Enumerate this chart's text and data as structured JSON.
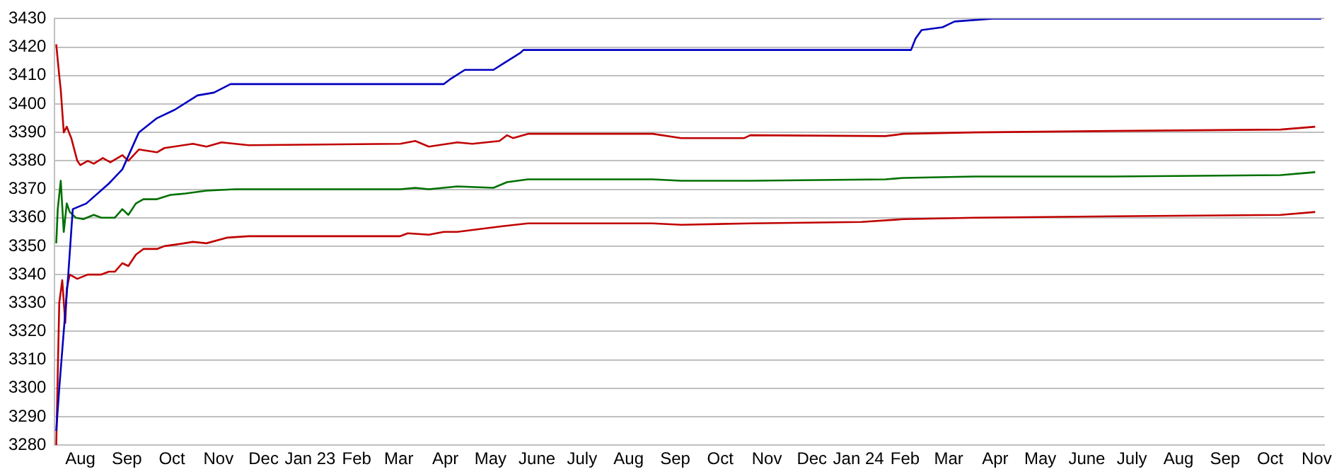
{
  "chart_data": {
    "type": "line",
    "ylim": [
      3280,
      3430
    ],
    "yticks": [
      3280,
      3290,
      3300,
      3310,
      3320,
      3330,
      3340,
      3350,
      3360,
      3370,
      3380,
      3390,
      3400,
      3410,
      3420,
      3430
    ],
    "xlim": [
      "2022-07-15",
      "2024-11-06"
    ],
    "xticks": [
      {
        "value": "2022-08-01",
        "label": "Aug"
      },
      {
        "value": "2022-09-01",
        "label": "Sep"
      },
      {
        "value": "2022-10-01",
        "label": "Oct"
      },
      {
        "value": "2022-11-01",
        "label": "Nov"
      },
      {
        "value": "2022-12-01",
        "label": "Dec"
      },
      {
        "value": "2023-01-01",
        "label": "Jan 23"
      },
      {
        "value": "2023-02-01",
        "label": "Feb"
      },
      {
        "value": "2023-03-01",
        "label": "Mar"
      },
      {
        "value": "2023-04-01",
        "label": "Apr"
      },
      {
        "value": "2023-05-01",
        "label": "May"
      },
      {
        "value": "2023-06-01",
        "label": "June"
      },
      {
        "value": "2023-07-01",
        "label": "July"
      },
      {
        "value": "2023-08-01",
        "label": "Aug"
      },
      {
        "value": "2023-09-01",
        "label": "Sep"
      },
      {
        "value": "2023-10-01",
        "label": "Oct"
      },
      {
        "value": "2023-11-01",
        "label": "Nov"
      },
      {
        "value": "2023-12-01",
        "label": "Dec"
      },
      {
        "value": "2024-01-01",
        "label": "Jan 24"
      },
      {
        "value": "2024-02-01",
        "label": "Feb"
      },
      {
        "value": "2024-03-01",
        "label": "Mar"
      },
      {
        "value": "2024-04-01",
        "label": "Apr"
      },
      {
        "value": "2024-05-01",
        "label": "May"
      },
      {
        "value": "2024-06-01",
        "label": "June"
      },
      {
        "value": "2024-07-01",
        "label": "July"
      },
      {
        "value": "2024-08-01",
        "label": "Aug"
      },
      {
        "value": "2024-09-01",
        "label": "Sep"
      },
      {
        "value": "2024-10-01",
        "label": "Oct"
      },
      {
        "value": "2024-11-01",
        "label": "Nov"
      }
    ],
    "grid": "y",
    "legend": false,
    "marker": "none",
    "line_style": "solid",
    "series": [
      {
        "color": "#0000c0",
        "x": [
          "2022-07-16",
          "2022-07-18",
          "2022-07-21",
          "2022-07-24",
          "2022-07-27",
          "2022-08-05",
          "2022-08-20",
          "2022-08-29",
          "2022-09-09",
          "2022-09-21",
          "2022-10-03",
          "2022-10-18",
          "2022-10-29",
          "2022-11-09",
          "2023-03-31",
          "2023-04-05",
          "2023-04-14",
          "2023-05-03",
          "2023-05-09",
          "2023-05-21",
          "2023-05-23",
          "2024-02-05",
          "2024-02-08",
          "2024-02-12",
          "2024-02-26",
          "2024-03-01",
          "2024-03-05",
          "2024-03-30",
          "2024-11-04"
        ],
        "values": [
          3285,
          3300,
          3320,
          3340,
          3363,
          3365,
          3372,
          3377,
          3390,
          3395,
          3398,
          3403,
          3404,
          3407,
          3407,
          3409,
          3412,
          3412,
          3414,
          3418,
          3419,
          3419,
          3423,
          3426,
          3427,
          3428,
          3429,
          3430,
          3430
        ]
      },
      {
        "color": "#c00000",
        "x": [
          "2022-07-16",
          "2022-07-18",
          "2022-07-19",
          "2022-07-21",
          "2022-07-23",
          "2022-07-26",
          "2022-07-30",
          "2022-08-01",
          "2022-08-06",
          "2022-08-10",
          "2022-08-16",
          "2022-08-21",
          "2022-08-29",
          "2022-09-02",
          "2022-09-09",
          "2022-09-21",
          "2022-09-26",
          "2022-10-15",
          "2022-10-24",
          "2022-11-03",
          "2022-11-21",
          "2023-03-02",
          "2023-03-12",
          "2023-03-21",
          "2023-04-09",
          "2023-04-19",
          "2023-05-07",
          "2023-05-12",
          "2023-05-16",
          "2023-05-26",
          "2023-08-17",
          "2023-09-05",
          "2023-10-17",
          "2023-10-21",
          "2024-01-19",
          "2024-01-31",
          "2024-03-18",
          "2024-06-18",
          "2024-10-08",
          "2024-10-31"
        ],
        "values": [
          3421,
          3410,
          3405,
          3390,
          3392,
          3388,
          3380,
          3378.5,
          3380,
          3379,
          3381,
          3379.5,
          3382,
          3380,
          3384,
          3383,
          3384.5,
          3386,
          3385,
          3386.5,
          3385.5,
          3386,
          3387,
          3385,
          3386.5,
          3386,
          3387,
          3389,
          3388,
          3389.5,
          3389.5,
          3388,
          3388,
          3389,
          3388.7,
          3389.5,
          3390,
          3390.5,
          3391,
          3392
        ]
      },
      {
        "color": "#007000",
        "x": [
          "2022-07-16",
          "2022-07-17",
          "2022-07-19",
          "2022-07-21",
          "2022-07-23",
          "2022-07-25",
          "2022-07-29",
          "2022-08-03",
          "2022-08-10",
          "2022-08-15",
          "2022-08-24",
          "2022-08-29",
          "2022-09-02",
          "2022-09-07",
          "2022-09-12",
          "2022-09-21",
          "2022-09-30",
          "2022-10-10",
          "2022-10-24",
          "2022-11-12",
          "2023-03-02",
          "2023-03-12",
          "2023-03-21",
          "2023-04-09",
          "2023-05-03",
          "2023-05-12",
          "2023-05-26",
          "2023-08-17",
          "2023-09-05",
          "2023-10-21",
          "2024-01-19",
          "2024-01-31",
          "2024-03-18",
          "2024-06-18",
          "2024-10-08",
          "2024-10-31"
        ],
        "values": [
          3351,
          3363,
          3373,
          3355,
          3365,
          3362,
          3360,
          3359.5,
          3361,
          3360,
          3360,
          3363,
          3361,
          3365,
          3366.5,
          3366.5,
          3368,
          3368.5,
          3369.5,
          3370,
          3370,
          3370.5,
          3370,
          3371,
          3370.5,
          3372.5,
          3373.5,
          3373.5,
          3373,
          3373,
          3373.5,
          3374,
          3374.5,
          3374.5,
          3375,
          3376
        ]
      },
      {
        "color": "#c00000",
        "x": [
          "2022-07-16",
          "2022-07-18",
          "2022-07-20",
          "2022-07-22",
          "2022-07-23",
          "2022-07-25",
          "2022-07-30",
          "2022-08-06",
          "2022-08-15",
          "2022-08-20",
          "2022-08-24",
          "2022-08-29",
          "2022-09-02",
          "2022-09-07",
          "2022-09-12",
          "2022-09-21",
          "2022-09-26",
          "2022-10-03",
          "2022-10-15",
          "2022-10-24",
          "2022-11-07",
          "2022-11-21",
          "2023-03-02",
          "2023-03-07",
          "2023-03-21",
          "2023-03-31",
          "2023-04-09",
          "2023-05-09",
          "2023-05-26",
          "2023-08-17",
          "2023-09-05",
          "2023-10-21",
          "2024-01-03",
          "2024-01-31",
          "2024-03-18",
          "2024-06-18",
          "2024-10-08",
          "2024-10-31"
        ],
        "values": [
          3280,
          3330,
          3338,
          3323,
          3335,
          3340,
          3338.5,
          3340,
          3340,
          3341,
          3341,
          3344,
          3343,
          3347,
          3349,
          3349,
          3350,
          3350.5,
          3351.5,
          3351,
          3353,
          3353.5,
          3353.5,
          3354.5,
          3354,
          3355,
          3355,
          3357,
          3358,
          3358,
          3357.5,
          3358,
          3358.5,
          3359.5,
          3360,
          3360.5,
          3361,
          3362
        ]
      }
    ]
  }
}
